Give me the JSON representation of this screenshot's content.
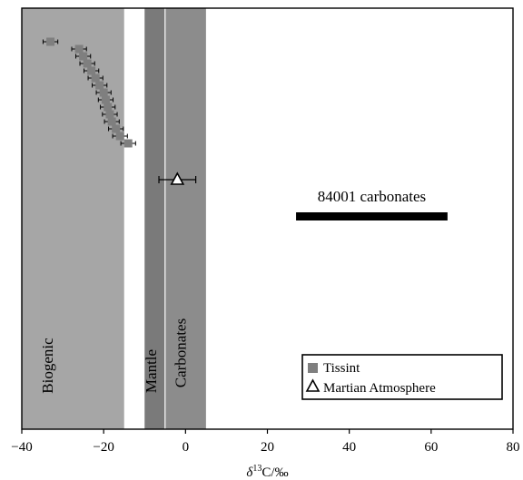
{
  "chart_data": {
    "type": "scatter",
    "xlabel_italic": "δ",
    "xlabel_sup": "13",
    "xlabel_rest": "C/‰",
    "xlim": [
      -40,
      80
    ],
    "xticks": [
      -40,
      -20,
      0,
      20,
      40,
      60,
      80
    ],
    "grid": false,
    "regions": [
      {
        "label": "Biogenic",
        "x0": -40,
        "x1": -15,
        "color": "#a6a6a6"
      },
      {
        "label": "Mantle",
        "x0": -10,
        "x1": -5,
        "color": "#7a7a7a"
      },
      {
        "label": "Carbonates",
        "x0": -5,
        "x1": 5,
        "color": "#8c8c8c"
      }
    ],
    "tissint": {
      "name": "Tissint",
      "points": [
        {
          "x": -33,
          "err": 1.8,
          "rank": 1
        },
        {
          "x": -26,
          "err": 1.8,
          "rank": 2
        },
        {
          "x": -25,
          "err": 1.8,
          "rank": 3
        },
        {
          "x": -24,
          "err": 1.8,
          "rank": 4
        },
        {
          "x": -23,
          "err": 1.8,
          "rank": 5
        },
        {
          "x": -22,
          "err": 1.8,
          "rank": 6
        },
        {
          "x": -21,
          "err": 1.8,
          "rank": 7
        },
        {
          "x": -20,
          "err": 1.8,
          "rank": 8
        },
        {
          "x": -19.5,
          "err": 1.8,
          "rank": 9
        },
        {
          "x": -19,
          "err": 1.8,
          "rank": 10
        },
        {
          "x": -18.5,
          "err": 1.8,
          "rank": 11
        },
        {
          "x": -18,
          "err": 1.8,
          "rank": 12
        },
        {
          "x": -17,
          "err": 1.8,
          "rank": 13
        },
        {
          "x": -16,
          "err": 1.8,
          "rank": 14
        },
        {
          "x": -14,
          "err": 1.8,
          "rank": 15
        }
      ]
    },
    "martian_atmosphere": {
      "name": "Martian Atmosphere",
      "x": -2,
      "err": 4.5
    },
    "carbonates_84001": {
      "label": "84001 carbonates",
      "x0": 27,
      "x1": 64
    }
  },
  "colors": {
    "tissint_marker": "#7f7f7f",
    "bar": "#000000",
    "axis": "#000000"
  }
}
